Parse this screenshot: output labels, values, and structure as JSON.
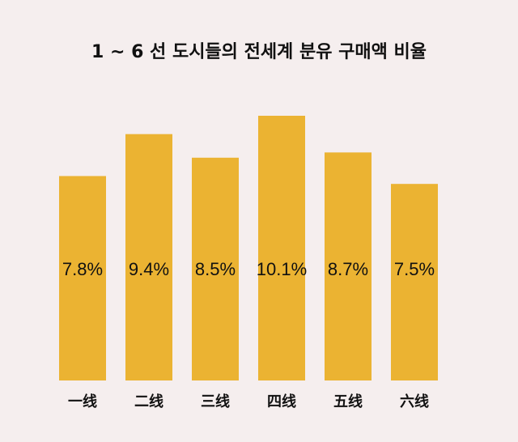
{
  "chart_data": {
    "type": "bar",
    "title": "1 ~ 6 선 도시들의 전세계 분유 구매액 비율",
    "categories": [
      "一线",
      "二线",
      "三线",
      "四线",
      "五线",
      "六线"
    ],
    "values": [
      7.8,
      9.4,
      8.5,
      10.1,
      8.7,
      7.5
    ],
    "value_labels": [
      "7.8%",
      "9.4%",
      "8.5%",
      "10.1%",
      "8.7%",
      "7.5%"
    ],
    "ylim": [
      0,
      10.1
    ],
    "grid": false,
    "bar_color": "#ebb332"
  }
}
